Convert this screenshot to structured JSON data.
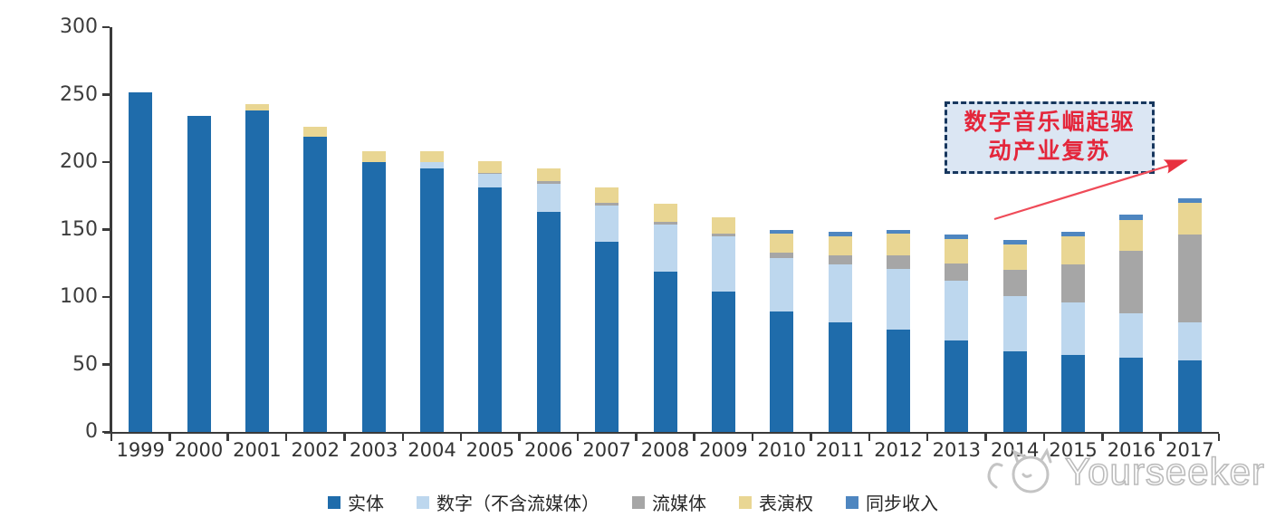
{
  "chart_data": {
    "type": "bar",
    "stacked": true,
    "categories": [
      "1999",
      "2000",
      "2001",
      "2002",
      "2003",
      "2004",
      "2005",
      "2006",
      "2007",
      "2008",
      "2009",
      "2010",
      "2011",
      "2012",
      "2013",
      "2014",
      "2015",
      "2016",
      "2017"
    ],
    "series": [
      {
        "name": "实体",
        "color": "#1f6cab",
        "values": [
          252,
          234,
          238,
          219,
          200,
          195,
          181,
          163,
          141,
          119,
          104,
          89,
          81,
          76,
          68,
          60,
          57,
          55,
          53
        ]
      },
      {
        "name": "数字（不含流媒体）",
        "color": "#bdd7ee",
        "values": [
          0,
          0,
          0,
          0,
          0,
          5,
          10,
          21,
          27,
          35,
          41,
          40,
          43,
          45,
          44,
          41,
          39,
          33,
          28
        ]
      },
      {
        "name": "流媒体",
        "color": "#a6a6a6",
        "values": [
          0,
          0,
          0,
          0,
          0,
          0,
          1,
          2,
          2,
          2,
          2,
          4,
          7,
          10,
          13,
          19,
          28,
          46,
          65
        ]
      },
      {
        "name": "表演权",
        "color": "#e9d693",
        "values": [
          0,
          0,
          5,
          7,
          8,
          8,
          9,
          9,
          11,
          13,
          12,
          14,
          14,
          16,
          18,
          19,
          21,
          23,
          24
        ]
      },
      {
        "name": "同步收入",
        "color": "#4e86c0",
        "values": [
          0,
          0,
          0,
          0,
          0,
          0,
          0,
          0,
          0,
          0,
          0,
          3,
          3,
          3,
          3,
          3,
          3,
          4,
          3
        ]
      }
    ],
    "ylim": [
      0,
      300
    ],
    "ytick_step": 50,
    "ytick_labels": [
      "0",
      "50",
      "100",
      "150",
      "200",
      "250",
      "300"
    ],
    "grid": false,
    "legend_position": "bottom"
  },
  "annotation": {
    "line1": "数字音乐崛起驱",
    "line2": "动产业复苏",
    "text_color": "#e4263b",
    "box_fill": "#dbe6f3",
    "box_border": "#17375e",
    "arrow_color": "#e8303f"
  },
  "watermark": {
    "text": "Yourseeker",
    "logo": "cat-logo-icon"
  }
}
